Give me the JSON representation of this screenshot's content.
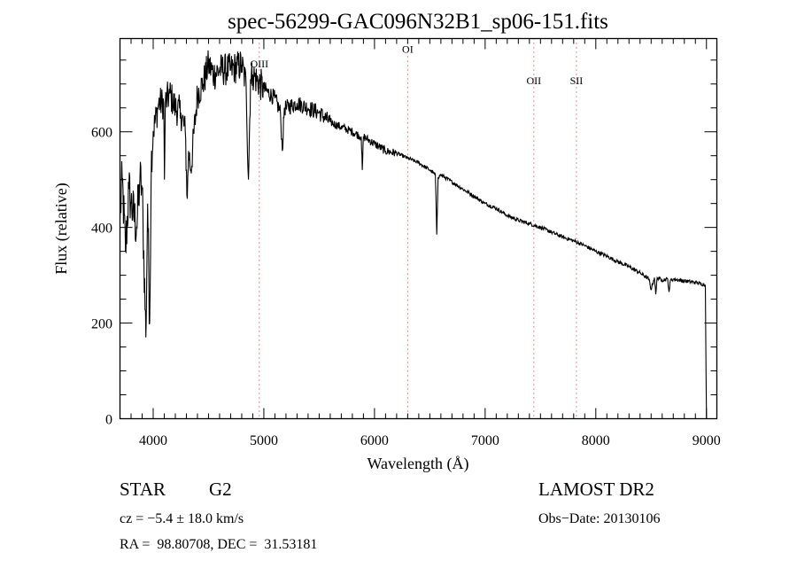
{
  "chart_data": {
    "type": "line",
    "title": "spec-56299-GAC096N32B1_sp06-151.fits",
    "xlabel": "Wavelength (Å)",
    "ylabel": "Flux (relative)",
    "xlim": [
      3700,
      9094
    ],
    "ylim": [
      0,
      795
    ],
    "xticks": [
      4000,
      5000,
      6000,
      7000,
      8000,
      9000
    ],
    "yticks": [
      0,
      200,
      400,
      600
    ],
    "x_minor_step": 100,
    "y_minor_step": 50,
    "grid": false,
    "line_color": "#000000",
    "marker_line_color": "#a0302a",
    "lines": [
      {
        "label": "OIII",
        "wavelength": 4959,
        "label_flux": 735
      },
      {
        "label": "OI",
        "wavelength": 6300,
        "label_flux": 765
      },
      {
        "label": "OII",
        "wavelength": 7440,
        "label_flux": 700
      },
      {
        "label": "SII",
        "wavelength": 7825,
        "label_flux": 700
      }
    ],
    "series": [
      {
        "name": "spectrum",
        "x": [
          3700,
          3720,
          3750,
          3780,
          3800,
          3850,
          3880,
          3900,
          3934,
          3950,
          3968,
          3985,
          4000,
          4050,
          4095,
          4102,
          4110,
          4150,
          4200,
          4250,
          4290,
          4308,
          4320,
          4340,
          4400,
          4450,
          4500,
          4550,
          4600,
          4700,
          4800,
          4840,
          4861,
          4880,
          4900,
          5000,
          5100,
          5150,
          5167,
          5185,
          5200,
          5300,
          5400,
          5500,
          5600,
          5700,
          5800,
          5880,
          5890,
          5900,
          6000,
          6100,
          6200,
          6300,
          6400,
          6500,
          6550,
          6563,
          6575,
          6600,
          6700,
          6800,
          6900,
          7000,
          7100,
          7200,
          7300,
          7400,
          7500,
          7600,
          7700,
          7800,
          7900,
          8000,
          8100,
          8200,
          8300,
          8400,
          8480,
          8498,
          8530,
          8542,
          8555,
          8600,
          8650,
          8662,
          8675,
          8700,
          8800,
          8900,
          8990,
          9000
        ],
        "y": [
          420,
          500,
          350,
          480,
          450,
          400,
          500,
          480,
          170,
          450,
          200,
          560,
          600,
          660,
          660,
          500,
          660,
          680,
          650,
          640,
          600,
          460,
          560,
          520,
          680,
          700,
          740,
          720,
          730,
          730,
          740,
          700,
          500,
          710,
          720,
          690,
          670,
          640,
          560,
          650,
          650,
          660,
          650,
          640,
          620,
          610,
          600,
          590,
          520,
          590,
          575,
          560,
          555,
          545,
          535,
          520,
          510,
          385,
          505,
          510,
          495,
          480,
          465,
          450,
          440,
          425,
          415,
          408,
          400,
          390,
          380,
          372,
          362,
          350,
          340,
          328,
          318,
          305,
          292,
          270,
          295,
          260,
          295,
          290,
          292,
          265,
          290,
          292,
          288,
          285,
          280,
          0
        ]
      }
    ]
  },
  "annotations": {
    "object_class": "STAR",
    "subclass": "G2",
    "survey": "LAMOST DR2",
    "redshift": "cz = −5.4 ± 18.0 km/s",
    "obs_date": "Obs−Date: 20130106",
    "coords": "RA =  98.80708, DEC =  31.53181"
  }
}
